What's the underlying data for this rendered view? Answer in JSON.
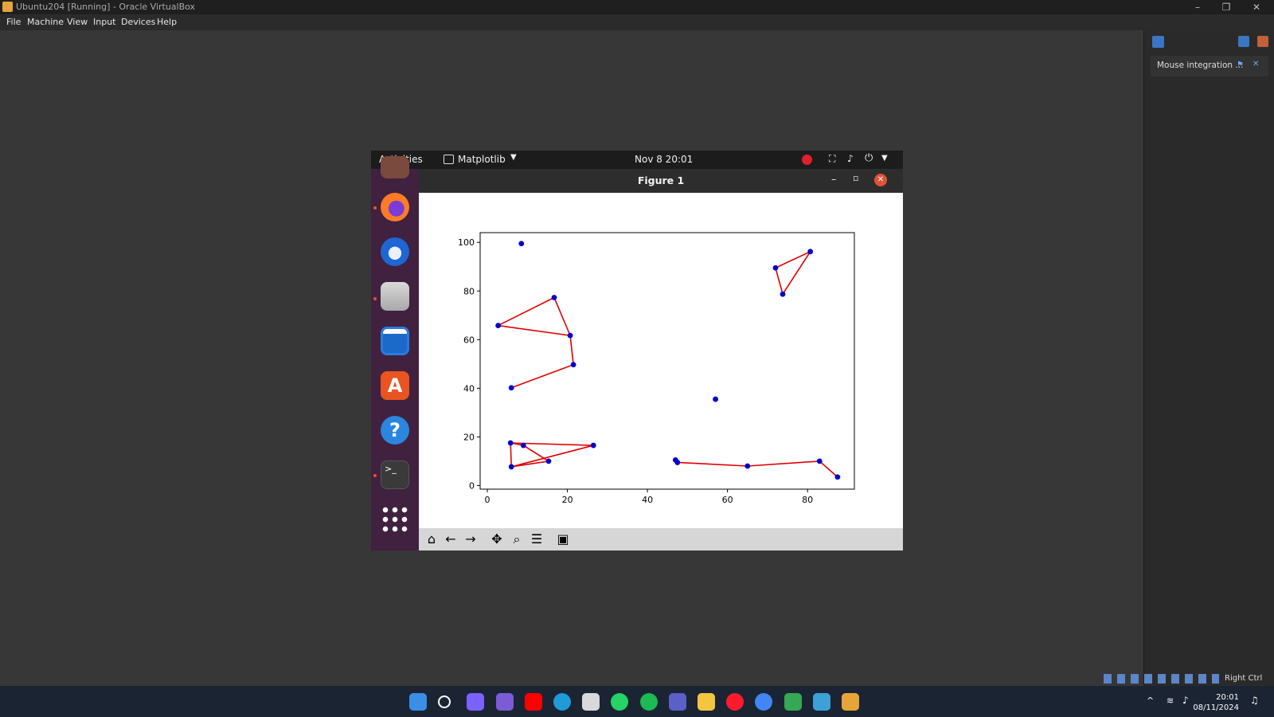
{
  "host": {
    "window_title": "Ubuntu204 [Running] - Oracle VirtualBox",
    "window_controls": {
      "minimize": "–",
      "restore": "❐",
      "close": "✕"
    },
    "menu": [
      "File",
      "Machine",
      "View",
      "Input",
      "Devices",
      "Help"
    ],
    "notification": "Mouse integration ...",
    "status_host_key": "Right Ctrl"
  },
  "guest": {
    "topbar": {
      "activities": "Activities",
      "app_name": "Matplotlib",
      "clock": "Nov 8  20:01"
    },
    "dock_apps": [
      "firefox-icon",
      "thunderbird-icon",
      "files-icon",
      "libreoffice-writer-icon",
      "app-center-icon",
      "help-icon",
      "terminal-icon",
      "show-apps-icon"
    ],
    "figure": {
      "title": "Figure 1",
      "controls": {
        "minimize": "–",
        "maximize": "▫",
        "close": "✕"
      }
    }
  },
  "chart_data": {
    "type": "scatter",
    "xlim": [
      -1.8,
      91.7
    ],
    "ylim": [
      -1.5,
      104
    ],
    "xticks": [
      "0",
      "20",
      "40",
      "60",
      "80"
    ],
    "xtick_values": [
      0,
      20,
      40,
      60,
      80
    ],
    "yticks": [
      "0",
      "20",
      "40",
      "60",
      "80",
      "100"
    ],
    "ytick_values": [
      0,
      20,
      40,
      60,
      80,
      100
    ],
    "grid": false,
    "point_color": "#0000cc",
    "line_color": "#e00000",
    "points": [
      [
        8.5,
        99.5
      ],
      [
        57,
        35.5
      ],
      [
        2.7,
        65.8
      ],
      [
        16.7,
        77.3
      ],
      [
        20.7,
        61.7
      ],
      [
        21.5,
        49.7
      ],
      [
        6,
        40.2
      ],
      [
        72,
        89.5
      ],
      [
        80.7,
        96.2
      ],
      [
        73.8,
        78.7
      ],
      [
        5.8,
        17.5
      ],
      [
        9,
        16.5
      ],
      [
        26.5,
        16.5
      ],
      [
        15.3,
        10
      ],
      [
        6,
        7.7
      ],
      [
        47,
        10.5
      ],
      [
        47.5,
        9.5
      ],
      [
        65,
        8
      ],
      [
        83,
        10
      ],
      [
        87.5,
        3.5
      ]
    ],
    "lines": [
      [
        [
          16.7,
          77.3
        ],
        [
          2.7,
          65.8
        ],
        [
          20.7,
          61.7
        ],
        [
          16.7,
          77.3
        ]
      ],
      [
        [
          20.7,
          61.7
        ],
        [
          21.5,
          49.7
        ],
        [
          6,
          40.2
        ]
      ],
      [
        [
          72,
          89.5
        ],
        [
          80.7,
          96.2
        ],
        [
          73.8,
          78.7
        ],
        [
          72,
          89.5
        ]
      ],
      [
        [
          5.8,
          17.5
        ],
        [
          26.5,
          16.5
        ],
        [
          6,
          7.7
        ],
        [
          5.8,
          17.5
        ]
      ],
      [
        [
          6,
          7.7
        ],
        [
          15.3,
          10
        ],
        [
          9,
          16.5
        ],
        [
          5.8,
          17.5
        ]
      ],
      [
        [
          47,
          10.5
        ],
        [
          47.5,
          9.5
        ],
        [
          65,
          8
        ],
        [
          83,
          10
        ],
        [
          87.5,
          3.5
        ]
      ]
    ]
  },
  "taskbar": {
    "apps": [
      "windows-start-icon",
      "search-icon",
      "copilot-icon",
      "app-icon",
      "youtube-icon",
      "edge-icon",
      "store-icon",
      "whatsapp-icon",
      "spotify-icon",
      "teams-icon",
      "file-explorer-icon",
      "opera-icon",
      "chrome-icon",
      "chrome-alt-icon",
      "vscode-icon",
      "virtualbox-icon"
    ],
    "time": "20:01",
    "date": "08/11/2024"
  }
}
